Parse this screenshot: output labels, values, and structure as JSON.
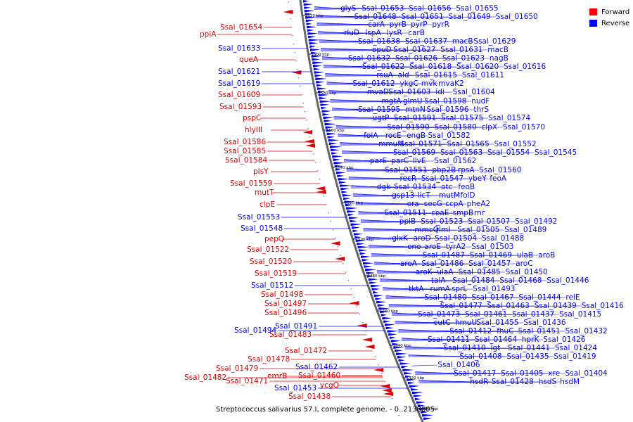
{
  "title": "Streptococcus salivarius 57.I, complete genome. - 0..2138805",
  "legend": [
    {
      "label": "Forward",
      "color": "#ff0000"
    },
    {
      "label": "Reverse",
      "color": "#0000ff"
    }
  ],
  "colors": {
    "forward": "#e00000",
    "reverse": "#0000ff",
    "backbone": "#666666"
  },
  "ticks": [
    {
      "label": "1620 kbp",
      "kbp": 1620
    },
    {
      "label": "1600 kbp",
      "kbp": 1600
    },
    {
      "label": "1580 kbp",
      "kbp": 1580
    },
    {
      "label": "1560 kbp",
      "kbp": 1560
    },
    {
      "label": "1540 kbp",
      "kbp": 1540
    },
    {
      "label": "1520 kbp",
      "kbp": 1520
    },
    {
      "label": "1500 kbp",
      "kbp": 1500
    },
    {
      "label": "1480 kbp",
      "kbp": 1480
    },
    {
      "label": "1460 kbp",
      "kbp": 1460
    },
    {
      "label": "1440 kbp",
      "kbp": 1440
    },
    {
      "label": "1420 kbp",
      "kbp": 1420
    },
    {
      "label": "1400 kbp",
      "kbp": 1400
    }
  ],
  "forward_labels": [
    "Ssal_01654",
    "ppiA",
    "queA",
    "Ssal_01609",
    "Ssal_01593",
    "pspC",
    "hlyIII",
    "Ssal_01586",
    "Ssal_01585",
    "Ssal_01584",
    "plsY",
    "Ssal_01559",
    "mutT",
    "clpE",
    "pepQ",
    "Ssal_01522",
    "Ssal_01520",
    "Ssal_01519",
    "Ssal_01498",
    "Ssal_01497",
    "Ssal_01496",
    "Ssal_01483",
    "Ssal_01472",
    "Ssal_01478",
    "Ssal_01479",
    "Ssal_01482",
    "Ssal_01471",
    "emrB",
    "Ssal_01460",
    "ycgQ",
    "Ssal_01438"
  ],
  "reverse_left_labels": [
    "Ssal_01633",
    "Ssal_01621",
    "Ssal_01619",
    "Ssal_01553",
    "Ssal_01548",
    "Ssal_01512",
    "Ssal_01491",
    "Ssal_01494",
    "Ssal_01462",
    "Ssal_01453"
  ],
  "reverse_right_labels": [
    "glyS",
    "Ssal_01653",
    "Ssal_01656",
    "Ssal_01655",
    "Ssal_01648",
    "Ssal_01651",
    "Ssal_01649",
    "Ssal_01650",
    "carA",
    "pyrB",
    "pyrP",
    "pyrR",
    "rluD",
    "lspA",
    "lysR",
    "carB",
    "Ssal_01638",
    "Ssal_01637",
    "macB",
    "Ssal_01629",
    "opuD",
    "Ssal_01627",
    "Ssal_01631",
    "macB",
    "Ssal_01632",
    "Ssal_01626",
    "Ssal_01623",
    "nagB",
    "Ssal_01622",
    "Ssal_01618",
    "Ssal_01620",
    "Ssal_01616",
    "rsuA",
    "ald",
    "Ssal_01615",
    "Ssal_01611",
    "Ssal_01612",
    "ykgC",
    "mvk",
    "mvaK2",
    "mvaD",
    "Ssal_01603",
    "idi",
    "Ssal_01604",
    "mgtA",
    "glmU",
    "Ssal_01598",
    "nudF",
    "Ssal_01595",
    "mtnN",
    "Ssal_01596",
    "thrS",
    "ugtP",
    "Ssal_01591",
    "Ssal_01575",
    "Ssal_01574",
    "Ssal_01590",
    "Ssal_01580",
    "clpX",
    "Ssal_01570",
    "folA",
    "rocE",
    "engB",
    "Ssal_01582",
    "mmuM",
    "Ssal_01571",
    "Ssal_01565",
    "Ssal_01552",
    "Ssal_01569",
    "Ssal_01563",
    "Ssal_01554",
    "Ssal_01545",
    "parE",
    "parC",
    "llvE",
    "Ssal_01562",
    "Ssal_01551",
    "pbp2B",
    "rpsA",
    "Ssal_01560",
    "recR",
    "Ssal_01547",
    "ybeY",
    "feoA",
    "dgk",
    "Ssal_01534",
    "otc",
    "feoB",
    "gsp13",
    "licT",
    "mutM",
    "folD",
    "era",
    "secG",
    "ccpA",
    "pheA2",
    "Ssal_01511",
    "coaE",
    "smpB",
    "rnr",
    "ppiB",
    "Ssal_01523",
    "Ssal_01507",
    "Ssal_01492",
    "mmcQ",
    "rlmI",
    "Ssal_01505",
    "Ssal_01489",
    "glxK",
    "aroD",
    "Ssal_01504",
    "Ssal_01488",
    "eno",
    "aroE",
    "tyrA2",
    "Ssal_01503",
    "Ssal_01487",
    "Ssal_01469",
    "ulaB",
    "aroB",
    "aroA",
    "Ssal_01486",
    "Ssal_01457",
    "aroC",
    "aroK",
    "ulaA",
    "Ssal_01485",
    "Ssal_01450",
    "talA",
    "Ssal_01484",
    "Ssal_01468",
    "Ssal_01446",
    "tktA",
    "rumA",
    "sprL",
    "Ssal_01493",
    "Ssal_01480",
    "Ssal_01467",
    "Ssal_01444",
    "relE",
    "Ssal_01477",
    "Ssal_01463",
    "Ssal_01439",
    "Ssal_01416",
    "Ssal_01473",
    "Ssal_01461",
    "Ssal_01437",
    "Ssal_01415",
    "cutC",
    "hmuU",
    "Ssal_01455",
    "Ssal_01436",
    "Ssal_01412",
    "fhuC",
    "Ssal_01451",
    "Ssal_01432",
    "Ssal_01411",
    "Ssal_01464",
    "hprK",
    "Ssal_01426",
    "Ssal_01410",
    "lgt",
    "Ssal_01441",
    "Ssal_01424",
    "Ssal_01408",
    "Ssal_01435",
    "Ssal_01419",
    "Ssal_01406",
    "Ssal_01417",
    "Ssal_01405",
    "xre",
    "Ssal_01404",
    "hsdR",
    "Ssal_01428",
    "hsdS",
    "hsdM"
  ]
}
